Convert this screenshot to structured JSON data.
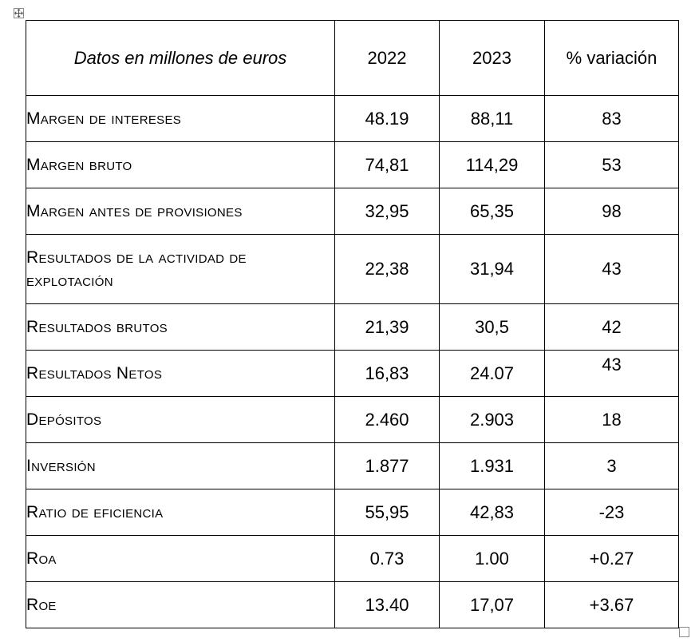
{
  "table": {
    "header": {
      "title": "Datos en millones de euros",
      "col_2022": "2022",
      "col_2023": "2023",
      "col_variation": "% variación"
    },
    "rows": [
      {
        "label": "Margen de intereses",
        "v2022": "48.19",
        "v2023": "88,11",
        "variation": "83"
      },
      {
        "label": "Margen bruto",
        "v2022": "74,81",
        "v2023": "114,29",
        "variation": "53"
      },
      {
        "label": "Margen antes de provisiones",
        "v2022": "32,95",
        "v2023": "65,35",
        "variation": "98"
      },
      {
        "label": "Resultados de la actividad de explotación",
        "v2022": "22,38",
        "v2023": "31,94",
        "variation": "43"
      },
      {
        "label": "Resultados brutos",
        "v2022": "21,39",
        "v2023": "30,5",
        "variation": "42"
      },
      {
        "label": "Resultados Netos",
        "v2022": "16,83",
        "v2023": "24.07",
        "variation": "43"
      },
      {
        "label": "Depósitos",
        "v2022": "2.460",
        "v2023": "2.903",
        "variation": "18"
      },
      {
        "label": "Inversión",
        "v2022": "1.877",
        "v2023": "1.931",
        "variation": "3"
      },
      {
        "label": "Ratio de eficiencia",
        "v2022": "55,95",
        "v2023": "42,83",
        "variation": "-23"
      },
      {
        "label": "Roa",
        "v2022": "0.73",
        "v2023": "1.00",
        "variation": "+0.27"
      },
      {
        "label": "Roe",
        "v2022": "13.40",
        "v2023": "17,07",
        "variation": "+3.67"
      }
    ]
  },
  "icons": {
    "move_handle": "table-move-icon",
    "resize_handle": "table-resize-icon"
  }
}
